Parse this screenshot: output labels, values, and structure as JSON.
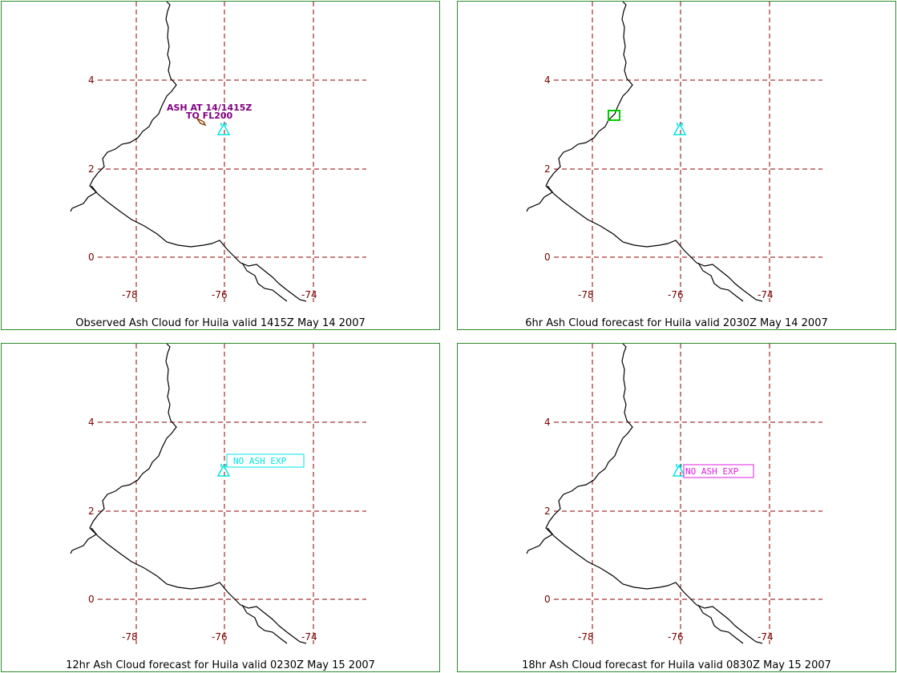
{
  "panels": [
    {
      "caption": "Observed Ash Cloud for Huila valid 1415Z May 14 2007",
      "annotation": {
        "line1": "ASH AT 14/1415Z",
        "line2": "TO FL200",
        "color": "#800080"
      },
      "ash_area": {
        "shape": "small polygon",
        "color": "#8b4513"
      },
      "notice": null
    },
    {
      "caption": "6hr Ash Cloud forecast for Huila valid 2030Z May 14 2007",
      "annotation": null,
      "ash_area": {
        "shape": "small box",
        "color": "#00cc00"
      },
      "notice": null
    },
    {
      "caption": "12hr Ash Cloud forecast for Huila valid 0230Z May 15 2007",
      "annotation": null,
      "ash_area": null,
      "notice": {
        "text": "NO ASH EXP",
        "color": "#00e5e5"
      }
    },
    {
      "caption": "18hr Ash Cloud forecast for Huila valid 0830Z May 15 2007",
      "annotation": null,
      "ash_area": null,
      "notice": {
        "text": "NO ASH EXP",
        "color": "#e020e0"
      }
    }
  ],
  "map": {
    "lat_ticks": [
      "4",
      "2",
      "0"
    ],
    "lon_ticks": [
      "-78",
      "-76",
      "-74"
    ],
    "grid_color": "#8b0000",
    "coast_color": "#000000",
    "volcano_icon": "volcano-triangle-icon",
    "volcano_color": "#00e5e5"
  }
}
